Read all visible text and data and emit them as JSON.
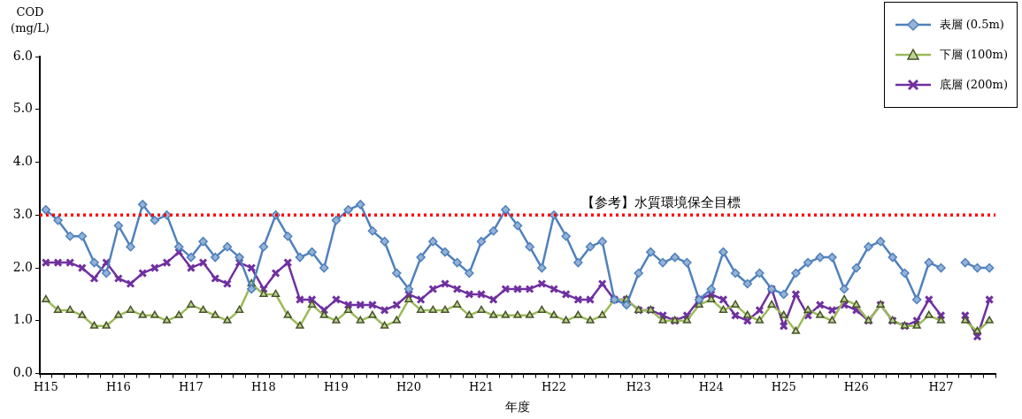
{
  "chart_data": {
    "type": "line",
    "ylabel": "COD\n(mg/L)",
    "xlabel": "年度",
    "categories": [
      "H15",
      null,
      null,
      null,
      null,
      null,
      "H16",
      null,
      null,
      null,
      null,
      null,
      "H17",
      null,
      null,
      null,
      null,
      null,
      "H18",
      null,
      null,
      null,
      null,
      null,
      "H19",
      null,
      null,
      null,
      null,
      null,
      "H20",
      null,
      null,
      null,
      null,
      null,
      "H21",
      null,
      null,
      null,
      null,
      null,
      "H22",
      null,
      null,
      null,
      null,
      null,
      null,
      "H23",
      null,
      null,
      null,
      null,
      null,
      "H24",
      null,
      null,
      null,
      null,
      null,
      "H25",
      null,
      null,
      null,
      null,
      null,
      "H26",
      null,
      null,
      null,
      null,
      null,
      null,
      "H27",
      null,
      null,
      null,
      null
    ],
    "series": [
      {
        "name": "表層 (0.5m)",
        "color": "#4f81bd",
        "marker": "diamond",
        "values": [
          3.1,
          2.9,
          2.6,
          2.6,
          2.1,
          1.9,
          2.8,
          2.4,
          3.2,
          2.9,
          3.0,
          2.4,
          2.2,
          2.5,
          2.2,
          2.4,
          2.2,
          1.6,
          2.4,
          3.0,
          2.6,
          2.2,
          2.3,
          2.0,
          2.9,
          3.1,
          3.2,
          2.7,
          2.5,
          1.9,
          1.6,
          2.2,
          2.5,
          2.3,
          2.1,
          1.9,
          2.5,
          2.7,
          3.1,
          2.8,
          2.4,
          2.0,
          3.0,
          2.6,
          2.1,
          2.4,
          2.5,
          1.4,
          1.3,
          1.9,
          2.3,
          2.1,
          2.2,
          2.1,
          1.4,
          1.6,
          2.3,
          1.9,
          1.7,
          1.9,
          1.6,
          1.5,
          1.9,
          2.1,
          2.2,
          2.2,
          1.6,
          2.0,
          2.4,
          2.5,
          2.2,
          1.9,
          1.4,
          2.1,
          2.0,
          null,
          2.1,
          2.0,
          2.0
        ]
      },
      {
        "name": "下層 (100m)",
        "color": "#9bbb59",
        "marker": "triangle",
        "values": [
          1.4,
          1.2,
          1.2,
          1.1,
          0.9,
          0.9,
          1.1,
          1.2,
          1.1,
          1.1,
          1.0,
          1.1,
          1.3,
          1.2,
          1.1,
          1.0,
          1.2,
          1.7,
          1.5,
          1.5,
          1.1,
          0.9,
          1.3,
          1.1,
          1.0,
          1.2,
          1.0,
          1.1,
          0.9,
          1.0,
          1.4,
          1.2,
          1.2,
          1.2,
          1.3,
          1.1,
          1.2,
          1.1,
          1.1,
          1.1,
          1.1,
          1.2,
          1.1,
          1.0,
          1.1,
          1.0,
          1.1,
          1.4,
          1.4,
          1.2,
          1.2,
          1.0,
          1.0,
          1.0,
          1.3,
          1.4,
          1.2,
          1.3,
          1.1,
          1.0,
          1.3,
          1.1,
          0.8,
          1.2,
          1.1,
          1.0,
          1.4,
          1.3,
          1.0,
          1.3,
          1.0,
          0.9,
          0.9,
          1.1,
          1.0,
          null,
          1.0,
          0.8,
          1.0
        ]
      },
      {
        "name": "底層 (200m)",
        "color": "#7030a0",
        "marker": "cross",
        "values": [
          2.1,
          2.1,
          2.1,
          2.0,
          1.8,
          2.1,
          1.8,
          1.7,
          1.9,
          2.0,
          2.1,
          2.3,
          2.0,
          2.1,
          1.8,
          1.7,
          2.1,
          2.0,
          1.6,
          1.9,
          2.1,
          1.4,
          1.4,
          1.2,
          1.4,
          1.3,
          1.3,
          1.3,
          1.2,
          1.3,
          1.5,
          1.4,
          1.6,
          1.7,
          1.6,
          1.5,
          1.5,
          1.4,
          1.6,
          1.6,
          1.6,
          1.7,
          1.6,
          1.5,
          1.4,
          1.4,
          1.7,
          1.4,
          1.4,
          1.2,
          1.2,
          1.1,
          1.0,
          1.1,
          1.4,
          1.5,
          1.4,
          1.1,
          1.0,
          1.2,
          1.6,
          0.9,
          1.5,
          1.1,
          1.3,
          1.2,
          1.3,
          1.2,
          1.0,
          1.3,
          1.0,
          0.9,
          1.0,
          1.4,
          1.1,
          null,
          1.1,
          0.7,
          1.4
        ]
      }
    ],
    "ylim": [
      0,
      6
    ],
    "yticks": [
      {
        "value": 0,
        "label": "0.0"
      },
      {
        "value": 1,
        "label": "1.0"
      },
      {
        "value": 2,
        "label": "2.0"
      },
      {
        "value": 3,
        "label": "3.0"
      },
      {
        "value": 4,
        "label": "4.0"
      },
      {
        "value": 5,
        "label": "5.0"
      },
      {
        "value": 6,
        "label": "6.0"
      }
    ],
    "ref_lines": [
      {
        "axis": "y",
        "value": 3,
        "label": "【参考】水質環境保全目標",
        "color": "#ff0000",
        "line_style": "dotted"
      }
    ],
    "grid": false,
    "legend": "top right"
  }
}
